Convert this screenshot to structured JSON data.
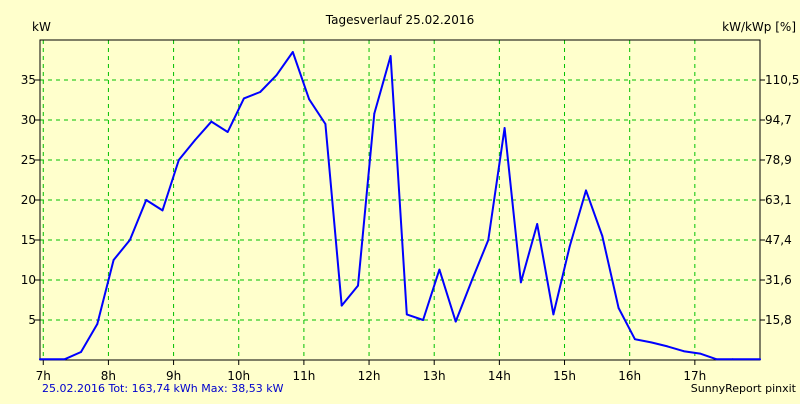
{
  "chart_data": {
    "type": "line",
    "title": "Tagesverlauf 25.02.2016",
    "ylabel_left": "kW",
    "ylabel_right": "kW/kWp [%]",
    "footer_left": "25.02.2016 Tot: 163,74 kWh Max: 38,53 kW",
    "footer_right": "SunnyReport pinxit",
    "xlim": [
      6.95,
      18.0
    ],
    "ylim": [
      0,
      40
    ],
    "grid": true,
    "x_ticks": [
      7,
      8,
      9,
      10,
      11,
      12,
      13,
      14,
      15,
      16,
      17
    ],
    "x_tick_labels": [
      "7h",
      "8h",
      "9h",
      "10h",
      "11h",
      "12h",
      "13h",
      "14h",
      "15h",
      "16h",
      "17h"
    ],
    "y_ticks": [
      5,
      10,
      15,
      20,
      25,
      30,
      35
    ],
    "y_tick_labels": [
      "5",
      "10",
      "15",
      "20",
      "25",
      "30",
      "35"
    ],
    "y2_ticks": [
      5,
      10,
      15,
      20,
      25,
      30,
      35
    ],
    "y2_tick_labels": [
      "15,8",
      "31,6",
      "47,4",
      "63,1",
      "78,9",
      "94,7",
      "110,5"
    ],
    "colors": {
      "background": "#ffffcc",
      "grid": "#00c000",
      "line": "#0000ff",
      "footer_text": "#0000cc"
    },
    "series": [
      {
        "values": [
          [
            6.95,
            0.1
          ],
          [
            7.33,
            0.1
          ],
          [
            7.58,
            1.0
          ],
          [
            7.83,
            4.5
          ],
          [
            8.08,
            12.5
          ],
          [
            8.33,
            15.0
          ],
          [
            8.58,
            20.0
          ],
          [
            8.83,
            18.7
          ],
          [
            9.08,
            25.0
          ],
          [
            9.33,
            27.5
          ],
          [
            9.58,
            29.8
          ],
          [
            9.83,
            28.5
          ],
          [
            10.08,
            32.7
          ],
          [
            10.33,
            33.5
          ],
          [
            10.58,
            35.6
          ],
          [
            10.83,
            38.5
          ],
          [
            11.08,
            32.6
          ],
          [
            11.33,
            29.5
          ],
          [
            11.58,
            6.8
          ],
          [
            11.83,
            9.3
          ],
          [
            12.08,
            30.8
          ],
          [
            12.33,
            38.0
          ],
          [
            12.58,
            5.7
          ],
          [
            12.83,
            5.0
          ],
          [
            13.08,
            11.3
          ],
          [
            13.33,
            4.8
          ],
          [
            13.58,
            10.0
          ],
          [
            13.83,
            15.0
          ],
          [
            14.08,
            29.0
          ],
          [
            14.33,
            9.7
          ],
          [
            14.58,
            17.0
          ],
          [
            14.83,
            5.7
          ],
          [
            15.08,
            14.2
          ],
          [
            15.33,
            21.2
          ],
          [
            15.58,
            15.5
          ],
          [
            15.83,
            6.5
          ],
          [
            16.08,
            2.6
          ],
          [
            16.33,
            2.2
          ],
          [
            16.58,
            1.7
          ],
          [
            16.83,
            1.1
          ],
          [
            17.08,
            0.8
          ],
          [
            17.33,
            0.1
          ],
          [
            17.58,
            0.1
          ],
          [
            18.0,
            0.1
          ]
        ]
      }
    ]
  }
}
